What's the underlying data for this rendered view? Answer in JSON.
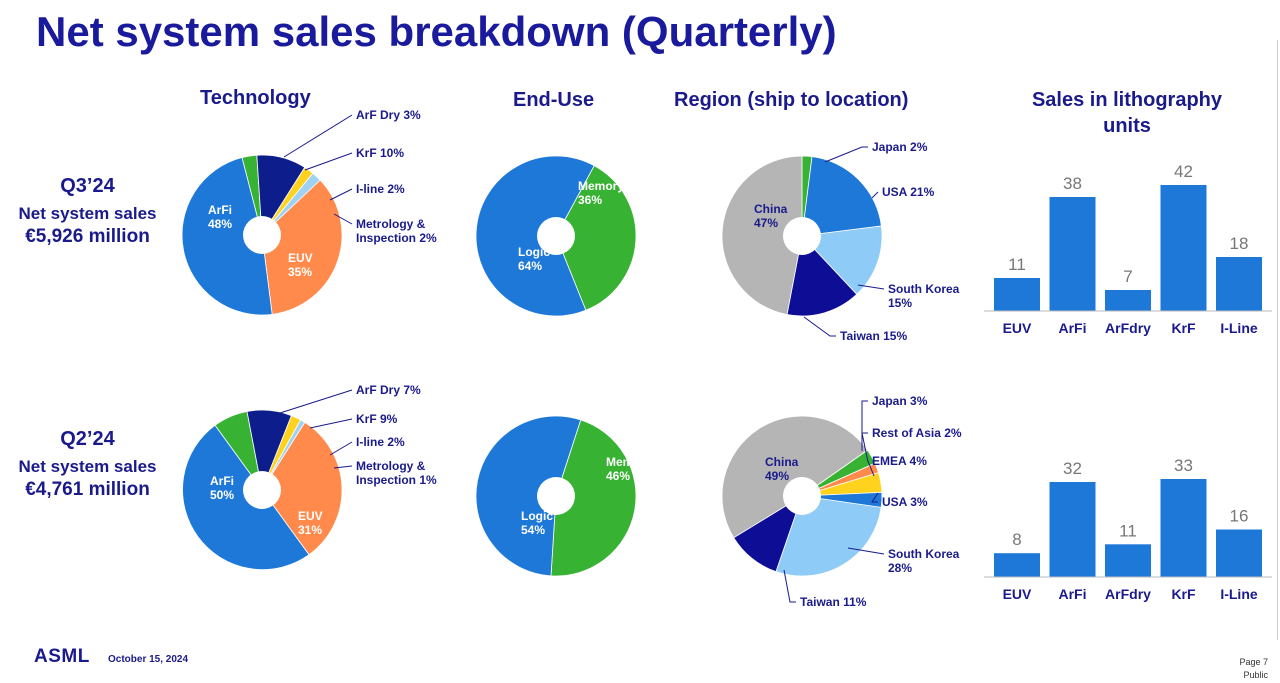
{
  "title": "Net system sales breakdown (Quarterly)",
  "headers": {
    "technology": "Technology",
    "end_use": "End-Use",
    "region": "Region (ship to location)",
    "units_line1": "Sales in lithography",
    "units_line2": "units"
  },
  "quarters": [
    {
      "label": "Q3’24",
      "sales_label": "Net system sales",
      "sales_value": "€5,926 million"
    },
    {
      "label": "Q2’24",
      "sales_label": "Net system sales",
      "sales_value": "€4,761 million"
    }
  ],
  "footer": {
    "logo": "ASML",
    "date": "October 15, 2024",
    "page": "Page 7",
    "classification": "Public"
  },
  "colors": {
    "title": "#1a1a9c",
    "label": "#1a1a8c",
    "bar": "#1e78d8",
    "bar_value": "#777777",
    "arfi": "#1e78d8",
    "euv": "#ff8a4c",
    "krf": "#0d1e8c",
    "arf_dry": "#37b233",
    "iline": "#ffd21e",
    "metrology": "#9fd2f2",
    "logic": "#1e78d8",
    "memory": "#37b233",
    "china": "#b5b5b5",
    "japan": "#37b233",
    "usa": "#1e78d8",
    "south_korea": "#8ecbf6",
    "taiwan": "#0d0d96",
    "rest_of_asia": "#ff8a4c",
    "emea": "#ffd21e"
  },
  "chart_data": [
    {
      "type": "pie",
      "id": "q3-technology",
      "donut": true,
      "slices": [
        {
          "name": "ArF Dry",
          "value": 3,
          "label": "ArF Dry 3%",
          "color": "#37b233",
          "callout": true
        },
        {
          "name": "KrF",
          "value": 10,
          "label": "KrF 10%",
          "color": "#0d1e8c",
          "callout": true
        },
        {
          "name": "I-line",
          "value": 2,
          "label": "I-line 2%",
          "color": "#ffd21e",
          "callout": true
        },
        {
          "name": "Metrology & Inspection",
          "value": 2,
          "label": "Metrology & Inspection 2%",
          "label_lines": [
            "Metrology &",
            "Inspection 2%"
          ],
          "color": "#9fd2f2",
          "callout": true
        },
        {
          "name": "EUV",
          "value": 35,
          "label": "EUV 35%",
          "label_lines": [
            "EUV",
            "35%"
          ],
          "color": "#ff8a4c",
          "callout": false,
          "text_color": "#ffffff"
        },
        {
          "name": "ArFi",
          "value": 48,
          "label": "ArFi 48%",
          "label_lines": [
            "ArFi",
            "48%"
          ],
          "color": "#1e78d8",
          "callout": false,
          "text_color": "#ffffff"
        }
      ]
    },
    {
      "type": "pie",
      "id": "q3-end-use",
      "donut": true,
      "slices": [
        {
          "name": "Memory",
          "value": 36,
          "label": "Memory 36%",
          "label_lines": [
            "Memory",
            "36%"
          ],
          "color": "#37b233",
          "callout": false,
          "text_color": "#ffffff"
        },
        {
          "name": "Logic",
          "value": 64,
          "label": "Logic 64%",
          "label_lines": [
            "Logic",
            "64%"
          ],
          "color": "#1e78d8",
          "callout": false,
          "text_color": "#ffffff"
        }
      ]
    },
    {
      "type": "pie",
      "id": "q3-region",
      "donut": true,
      "slices": [
        {
          "name": "Japan",
          "value": 2,
          "label": "Japan 2%",
          "color": "#37b233",
          "callout": true
        },
        {
          "name": "USA",
          "value": 21,
          "label": "USA 21%",
          "color": "#1e78d8",
          "callout": true
        },
        {
          "name": "South Korea",
          "value": 15,
          "label": "South Korea 15%",
          "label_lines": [
            "South Korea",
            "15%"
          ],
          "color": "#8ecbf6",
          "callout": true
        },
        {
          "name": "Taiwan",
          "value": 15,
          "label": "Taiwan 15%",
          "color": "#0d0d96",
          "callout": true
        },
        {
          "name": "China",
          "value": 47,
          "label": "China 47%",
          "label_lines": [
            "China",
            "47%"
          ],
          "color": "#b5b5b5",
          "callout": false,
          "text_color": "#1a1a8c"
        }
      ]
    },
    {
      "type": "bar",
      "id": "q3-units",
      "categories": [
        "EUV",
        "ArFi",
        "ArFdry",
        "KrF",
        "I-Line"
      ],
      "values": [
        11,
        38,
        7,
        42,
        18
      ]
    },
    {
      "type": "pie",
      "id": "q2-technology",
      "donut": true,
      "slices": [
        {
          "name": "ArF Dry",
          "value": 7,
          "label": "ArF Dry 7%",
          "color": "#37b233",
          "callout": true
        },
        {
          "name": "KrF",
          "value": 9,
          "label": "KrF 9%",
          "color": "#0d1e8c",
          "callout": true
        },
        {
          "name": "I-line",
          "value": 2,
          "label": "I-line 2%",
          "color": "#ffd21e",
          "callout": true
        },
        {
          "name": "Metrology & Inspection",
          "value": 1,
          "label": "Metrology & Inspection 1%",
          "label_lines": [
            "Metrology &",
            "Inspection 1%"
          ],
          "color": "#9fd2f2",
          "callout": true
        },
        {
          "name": "EUV",
          "value": 31,
          "label": "EUV 31%",
          "label_lines": [
            "EUV",
            "31%"
          ],
          "color": "#ff8a4c",
          "callout": false,
          "text_color": "#ffffff"
        },
        {
          "name": "ArFi",
          "value": 50,
          "label": "ArFi 50%",
          "label_lines": [
            "ArFi",
            "50%"
          ],
          "color": "#1e78d8",
          "callout": false,
          "text_color": "#ffffff"
        }
      ]
    },
    {
      "type": "pie",
      "id": "q2-end-use",
      "donut": true,
      "slices": [
        {
          "name": "Memory",
          "value": 46,
          "label": "Memory 46%",
          "label_lines": [
            "Memory",
            "46%"
          ],
          "color": "#37b233",
          "callout": false,
          "text_color": "#ffffff"
        },
        {
          "name": "Logic",
          "value": 54,
          "label": "Logic 54%",
          "label_lines": [
            "Logic",
            "54%"
          ],
          "color": "#1e78d8",
          "callout": false,
          "text_color": "#ffffff"
        }
      ]
    },
    {
      "type": "pie",
      "id": "q2-region",
      "donut": true,
      "slices": [
        {
          "name": "Japan",
          "value": 3,
          "label": "Japan 3%",
          "color": "#37b233",
          "callout": true
        },
        {
          "name": "Rest of Asia",
          "value": 2,
          "label": "Rest of Asia 2%",
          "color": "#ff8a4c",
          "callout": true
        },
        {
          "name": "EMEA",
          "value": 4,
          "label": "EMEA 4%",
          "color": "#ffd21e",
          "callout": true
        },
        {
          "name": "USA",
          "value": 3,
          "label": "USA 3%",
          "color": "#1e78d8",
          "callout": true
        },
        {
          "name": "South Korea",
          "value": 28,
          "label": "South Korea 28%",
          "label_lines": [
            "South Korea",
            "28%"
          ],
          "color": "#8ecbf6",
          "callout": true
        },
        {
          "name": "Taiwan",
          "value": 11,
          "label": "Taiwan 11%",
          "color": "#0d0d96",
          "callout": true
        },
        {
          "name": "China",
          "value": 49,
          "label": "China 49%",
          "label_lines": [
            "China",
            "49%"
          ],
          "color": "#b5b5b5",
          "callout": false,
          "text_color": "#1a1a8c"
        }
      ]
    },
    {
      "type": "bar",
      "id": "q2-units",
      "categories": [
        "EUV",
        "ArFi",
        "ArFdry",
        "KrF",
        "I-Line"
      ],
      "values": [
        8,
        32,
        11,
        33,
        16
      ]
    }
  ]
}
